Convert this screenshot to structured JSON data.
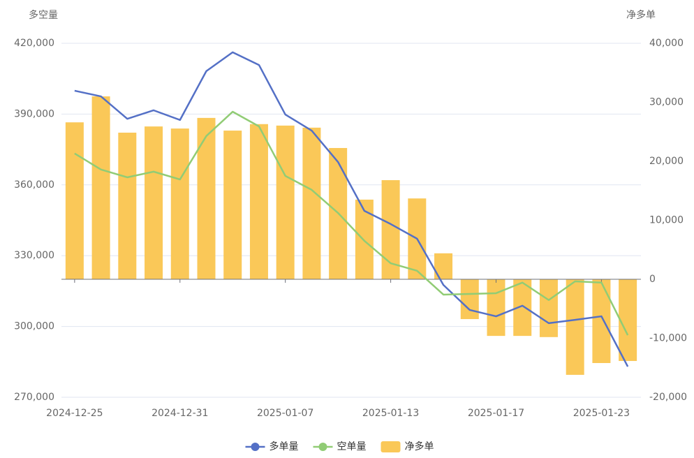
{
  "chart_data": {
    "type": "combo",
    "y_label": "多空量",
    "y2_label": "净多单",
    "categories": [
      "2024-12-25",
      null,
      null,
      null,
      "2024-12-31",
      null,
      null,
      null,
      "2025-01-07",
      null,
      null,
      null,
      "2025-01-13",
      null,
      null,
      null,
      "2025-01-17",
      null,
      null,
      null,
      "2025-01-23",
      null
    ],
    "series": [
      {
        "name": "多单量",
        "type": "line",
        "color": "#5470c6",
        "values": [
          399900,
          397500,
          388000,
          391600,
          387500,
          408200,
          416200,
          410800,
          389800,
          383000,
          369700,
          349000,
          343400,
          337200,
          317600,
          307000,
          304300,
          308800,
          301400,
          302800,
          304300,
          283000
        ]
      },
      {
        "name": "空单量",
        "type": "line",
        "color": "#91cc75",
        "values": [
          373300,
          366500,
          363200,
          365600,
          362300,
          380700,
          391000,
          384800,
          363800,
          357900,
          348100,
          336300,
          326800,
          323600,
          313500,
          313800,
          314100,
          318600,
          311200,
          319100,
          318600,
          296300
        ]
      },
      {
        "name": "净多单",
        "type": "bar",
        "axis": "y2",
        "color": "#fac858",
        "values": [
          26600,
          31000,
          24850,
          25900,
          25550,
          27350,
          25200,
          26300,
          26050,
          25700,
          22250,
          13500,
          16800,
          13700,
          4400,
          -6750,
          -9600,
          -9600,
          -9800,
          -16200,
          -14200,
          -13850
        ]
      }
    ],
    "ylim": [
      270000,
      420000
    ],
    "yticks": [
      {
        "value": 270000,
        "label": "270,000"
      },
      {
        "value": 300000,
        "label": "300,000"
      },
      {
        "value": 330000,
        "label": "330,000"
      },
      {
        "value": 360000,
        "label": "360,000"
      },
      {
        "value": 390000,
        "label": "390,000"
      },
      {
        "value": 420000,
        "label": "420,000"
      }
    ],
    "y2lim": [
      -20000,
      40000
    ],
    "y2ticks": [
      {
        "value": -20000,
        "label": "-20,000"
      },
      {
        "value": -10000,
        "label": "-10,000"
      },
      0,
      {
        "value": 10000,
        "label": "10,000"
      },
      {
        "value": 20000,
        "label": "20,000"
      },
      {
        "value": 30000,
        "label": "30,000"
      },
      {
        "value": 40000,
        "label": "40,000"
      }
    ],
    "grid": true,
    "legend": "bottom"
  }
}
